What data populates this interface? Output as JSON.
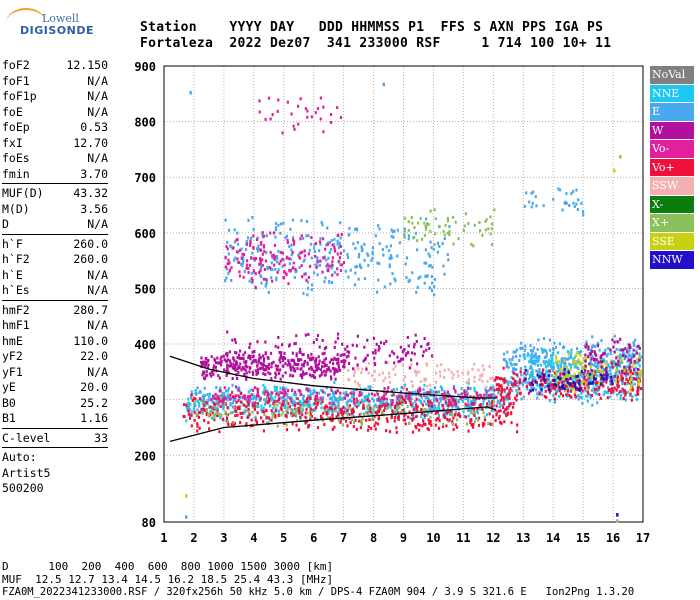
{
  "logo": {
    "line1": "Lowell",
    "line2": "DIGISONDE"
  },
  "header": {
    "line1": "Station    YYYY DAY   DDD HHMMSS P1  FFS S AXN PPS IGA PS",
    "line2": "Fortaleza  2022 Dez07  341 233000 RSF     1 714 100 10+ 11"
  },
  "params": {
    "group1": [
      {
        "name": "foF2",
        "value": "12.150"
      },
      {
        "name": "foF1",
        "value": "N/A"
      },
      {
        "name": "foF1p",
        "value": "N/A"
      },
      {
        "name": "foE",
        "value": "N/A"
      },
      {
        "name": "foEp",
        "value": "0.53"
      },
      {
        "name": "fxI",
        "value": "12.70"
      },
      {
        "name": "foEs",
        "value": "N/A"
      },
      {
        "name": "fmin",
        "value": "3.70"
      }
    ],
    "group2": [
      {
        "name": "MUF(D)",
        "value": "43.32"
      },
      {
        "name": "M(D)",
        "value": "3.56"
      },
      {
        "name": "D",
        "value": "N/A"
      }
    ],
    "group3": [
      {
        "name": "h`F",
        "value": "260.0"
      },
      {
        "name": "h`F2",
        "value": "260.0"
      },
      {
        "name": "h`E",
        "value": "N/A"
      },
      {
        "name": "h`Es",
        "value": "N/A"
      }
    ],
    "group4": [
      {
        "name": "hmF2",
        "value": "280.7"
      },
      {
        "name": "hmF1",
        "value": "N/A"
      },
      {
        "name": "hmE",
        "value": "110.0"
      },
      {
        "name": "yF2",
        "value": "22.0"
      },
      {
        "name": "yF1",
        "value": "N/A"
      },
      {
        "name": "yE",
        "value": "20.0"
      },
      {
        "name": "B0",
        "value": "25.2"
      },
      {
        "name": "B1",
        "value": "1.16"
      }
    ],
    "group5": [
      {
        "name": "C-level",
        "value": "33"
      }
    ],
    "auto_lines": [
      "Auto:",
      "Artist5",
      "500200"
    ]
  },
  "legend": [
    {
      "label": "NoVal",
      "color": "#808080"
    },
    {
      "label": "NNE",
      "color": "#1ec8f0"
    },
    {
      "label": "E",
      "color": "#4aa8f0"
    },
    {
      "label": "W",
      "color": "#b0109c"
    },
    {
      "label": "Vo-",
      "color": "#e0209c"
    },
    {
      "label": "Vo+",
      "color": "#f0103c"
    },
    {
      "label": "SSW",
      "color": "#f4b0b0"
    },
    {
      "label": "X-",
      "color": "#0c7c0c"
    },
    {
      "label": "X+",
      "color": "#8cc05c"
    },
    {
      "label": "SSE",
      "color": "#c8d010"
    },
    {
      "label": "NNW",
      "color": "#2010c8"
    }
  ],
  "footer": {
    "line1": "D      100  200  400  600  800 1000 1500 3000 [km]",
    "line2": "MUF  12.5 12.7 13.4 14.5 16.2 18.5 25.4 43.3 [MHz]",
    "line3": "FZA0M_2022341233000.RSF / 320fx256h 50 kHz 5.0 km / DPS-4 FZA0M 904 / 3.9 S 321.6 E   Ion2Png 1.3.20"
  },
  "chart_data": {
    "type": "scatter",
    "title": "",
    "xlabel": "",
    "ylabel": "",
    "xlim": [
      1,
      17
    ],
    "ylim": [
      80,
      900
    ],
    "x_ticks": [
      1,
      2,
      3,
      4,
      5,
      6,
      7,
      8,
      9,
      10,
      11,
      12,
      13,
      14,
      15,
      16,
      17
    ],
    "y_ticks": [
      80,
      200,
      300,
      400,
      500,
      600,
      700,
      800,
      900
    ],
    "grid": true,
    "legend_position": "right",
    "profile_trace": [
      {
        "x": 1.2,
        "y": 225
      },
      {
        "x": 3,
        "y": 250
      },
      {
        "x": 6,
        "y": 263
      },
      {
        "x": 9,
        "y": 275
      },
      {
        "x": 11.8,
        "y": 287
      },
      {
        "x": 12.1,
        "y": 281
      }
    ],
    "profile_upper": [
      {
        "x": 1.2,
        "y": 378
      },
      {
        "x": 2.5,
        "y": 355
      },
      {
        "x": 4,
        "y": 338
      },
      {
        "x": 6,
        "y": 325
      },
      {
        "x": 9,
        "y": 312
      },
      {
        "x": 11.5,
        "y": 303
      },
      {
        "x": 12.1,
        "y": 303
      }
    ],
    "clusters": [
      {
        "label": "NNE",
        "x": [
          1.7,
          12
        ],
        "y": [
          262,
          335
        ],
        "count": 380
      },
      {
        "label": "E",
        "x": [
          1.8,
          12.5
        ],
        "y": [
          270,
          330
        ],
        "count": 420
      },
      {
        "label": "Vo+",
        "x": [
          1.6,
          12.8
        ],
        "y": [
          240,
          320
        ],
        "count": 520
      },
      {
        "label": "W",
        "x": [
          2.2,
          7
        ],
        "y": [
          335,
          390
        ],
        "count": 300
      },
      {
        "label": "Vo-",
        "x": [
          2.5,
          12
        ],
        "y": [
          290,
          330
        ],
        "count": 160
      },
      {
        "label": "X+",
        "x": [
          2,
          12
        ],
        "y": [
          250,
          310
        ],
        "count": 120
      },
      {
        "label": "SSW",
        "x": [
          7,
          12
        ],
        "y": [
          320,
          370
        ],
        "count": 90
      },
      {
        "label": "E",
        "x": [
          12.3,
          16.9
        ],
        "y": [
          295,
          420
        ],
        "count": 420
      },
      {
        "label": "NNE",
        "x": [
          13,
          16.9
        ],
        "y": [
          290,
          400
        ],
        "count": 220
      },
      {
        "label": "Vo+",
        "x": [
          12,
          16.9
        ],
        "y": [
          300,
          360
        ],
        "count": 220
      },
      {
        "label": "SSE",
        "x": [
          14,
          16.9
        ],
        "y": [
          310,
          390
        ],
        "count": 120
      },
      {
        "label": "W",
        "x": [
          15,
          16.9
        ],
        "y": [
          330,
          420
        ],
        "count": 90
      },
      {
        "label": "NNW",
        "x": [
          13,
          16
        ],
        "y": [
          310,
          360
        ],
        "count": 70
      },
      {
        "label": "E",
        "x": [
          3,
          10.5
        ],
        "y": [
          480,
          640
        ],
        "count": 300
      },
      {
        "label": "Vo-",
        "x": [
          3,
          7
        ],
        "y": [
          500,
          610
        ],
        "count": 160
      },
      {
        "label": "X+",
        "x": [
          9,
          12
        ],
        "y": [
          570,
          650
        ],
        "count": 60
      },
      {
        "label": "W",
        "x": [
          3,
          10
        ],
        "y": [
          350,
          430
        ],
        "count": 160
      },
      {
        "label": "Vo-",
        "x": [
          4,
          7
        ],
        "y": [
          780,
          860
        ],
        "count": 30
      },
      {
        "label": "E",
        "x": [
          13,
          15
        ],
        "y": [
          630,
          690
        ],
        "count": 30
      }
    ],
    "isolated_points": [
      {
        "x": 1.85,
        "y": 855,
        "label": "E"
      },
      {
        "x": 1.7,
        "y": 92,
        "label": "E"
      },
      {
        "x": 1.7,
        "y": 130,
        "label": "SSE"
      },
      {
        "x": 16.1,
        "y": 96,
        "label": "NNW"
      },
      {
        "x": 16.1,
        "y": 85,
        "label": "X+"
      },
      {
        "x": 16.2,
        "y": 740,
        "label": "X+"
      },
      {
        "x": 16.0,
        "y": 715,
        "label": "SSE"
      },
      {
        "x": 8.3,
        "y": 870,
        "label": "E"
      }
    ]
  }
}
